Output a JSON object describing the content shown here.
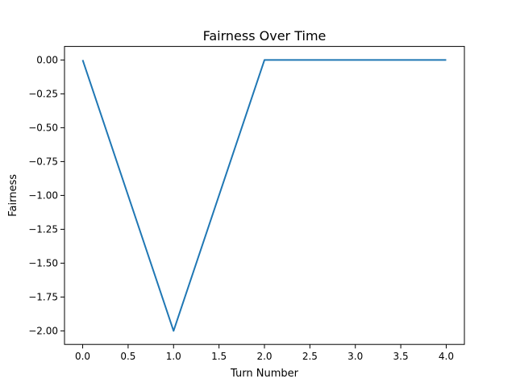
{
  "chart_data": {
    "type": "line",
    "title": "Fairness Over Time",
    "xlabel": "Turn Number",
    "ylabel": "Fairness",
    "x": [
      0,
      1,
      2,
      3,
      4
    ],
    "series": [
      {
        "values": [
          0.0,
          -2.0,
          0.0,
          0.0,
          0.0
        ],
        "color": "#1f77b4"
      }
    ],
    "xlim": [
      -0.2,
      4.2
    ],
    "ylim": [
      -2.1,
      0.1
    ],
    "xticks": [
      0.0,
      0.5,
      1.0,
      1.5,
      2.0,
      2.5,
      3.0,
      3.5,
      4.0
    ],
    "xtick_labels": [
      "0.0",
      "0.5",
      "1.0",
      "1.5",
      "2.0",
      "2.5",
      "3.0",
      "3.5",
      "4.0"
    ],
    "yticks": [
      0.0,
      -0.25,
      -0.5,
      -0.75,
      -1.0,
      -1.25,
      -1.5,
      -1.75,
      -2.0
    ],
    "ytick_labels": [
      "0.00",
      "−0.25",
      "−0.50",
      "−0.75",
      "−1.00",
      "−1.25",
      "−1.50",
      "−1.75",
      "−2.00"
    ],
    "grid": false,
    "legend": false
  }
}
